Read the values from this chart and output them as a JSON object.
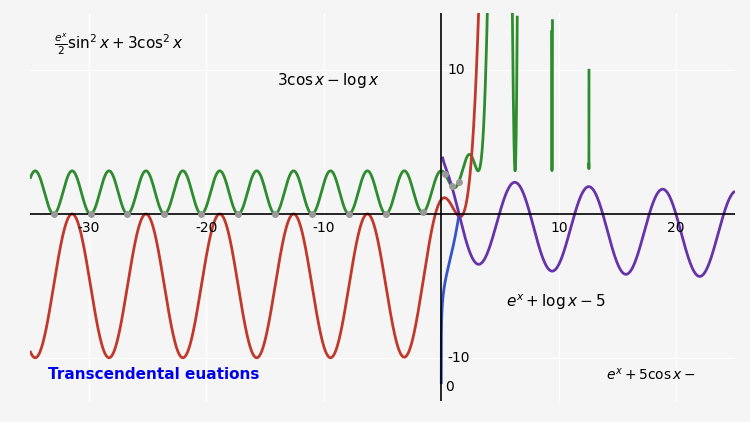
{
  "xlim": [
    -35,
    25
  ],
  "ylim": [
    -13,
    14
  ],
  "xticks": [
    -30,
    -20,
    -10,
    0,
    10,
    20
  ],
  "yticks": [
    -10,
    10
  ],
  "bg_color": "#f5f5f5",
  "grid_color": "#ffffff",
  "label1": "$\\frac{e^x}{2}\\sin^2 x + 3\\cos^2 x$",
  "label2": "$3\\cos x - \\log x$",
  "label3": "$e^x + \\log x - 5$",
  "label4": "$e^x + 5\\cos x -$",
  "color_green": "#2d8c2d",
  "color_red": "#c0392b",
  "color_blue": "#3355cc",
  "color_purple": "#6633aa",
  "color_title": "#0000ee",
  "dot_color": "#999999",
  "title_text": "Transcendental euations"
}
